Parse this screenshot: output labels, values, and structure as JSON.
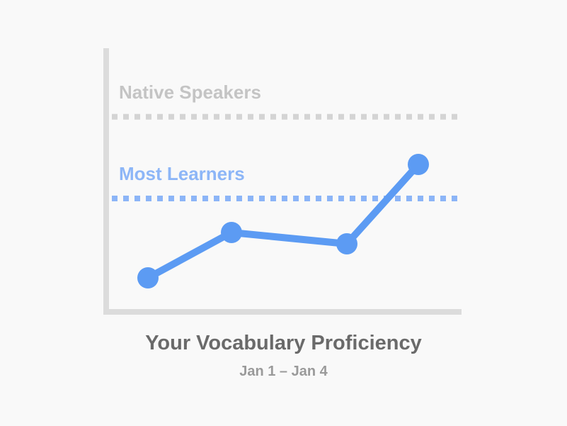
{
  "colors": {
    "background": "#f9f9f9",
    "axis": "#dcdcdc",
    "native_line": "#d4d4d4",
    "native_label": "#c4c4c4",
    "learner_line": "#8cb5f7",
    "learner_label": "#8db6f7",
    "series": "#5c9bf3",
    "title": "#6a6a6a",
    "subtitle": "#9a9a9a"
  },
  "chart_data": {
    "type": "line",
    "title": "Your Vocabulary Proficiency",
    "subtitle": "Jan 1 – Jan 4",
    "xlabel": "",
    "ylabel": "",
    "x": [
      1,
      2,
      3,
      4
    ],
    "ylim": [
      0,
      100
    ],
    "grid": false,
    "series": [
      {
        "values": [
          15,
          35,
          30,
          65
        ]
      }
    ],
    "reference_lines": [
      {
        "name": "Native Speakers",
        "value": 86,
        "style": "dotted"
      },
      {
        "name": "Most Learners",
        "value": 50,
        "style": "dotted"
      }
    ]
  }
}
